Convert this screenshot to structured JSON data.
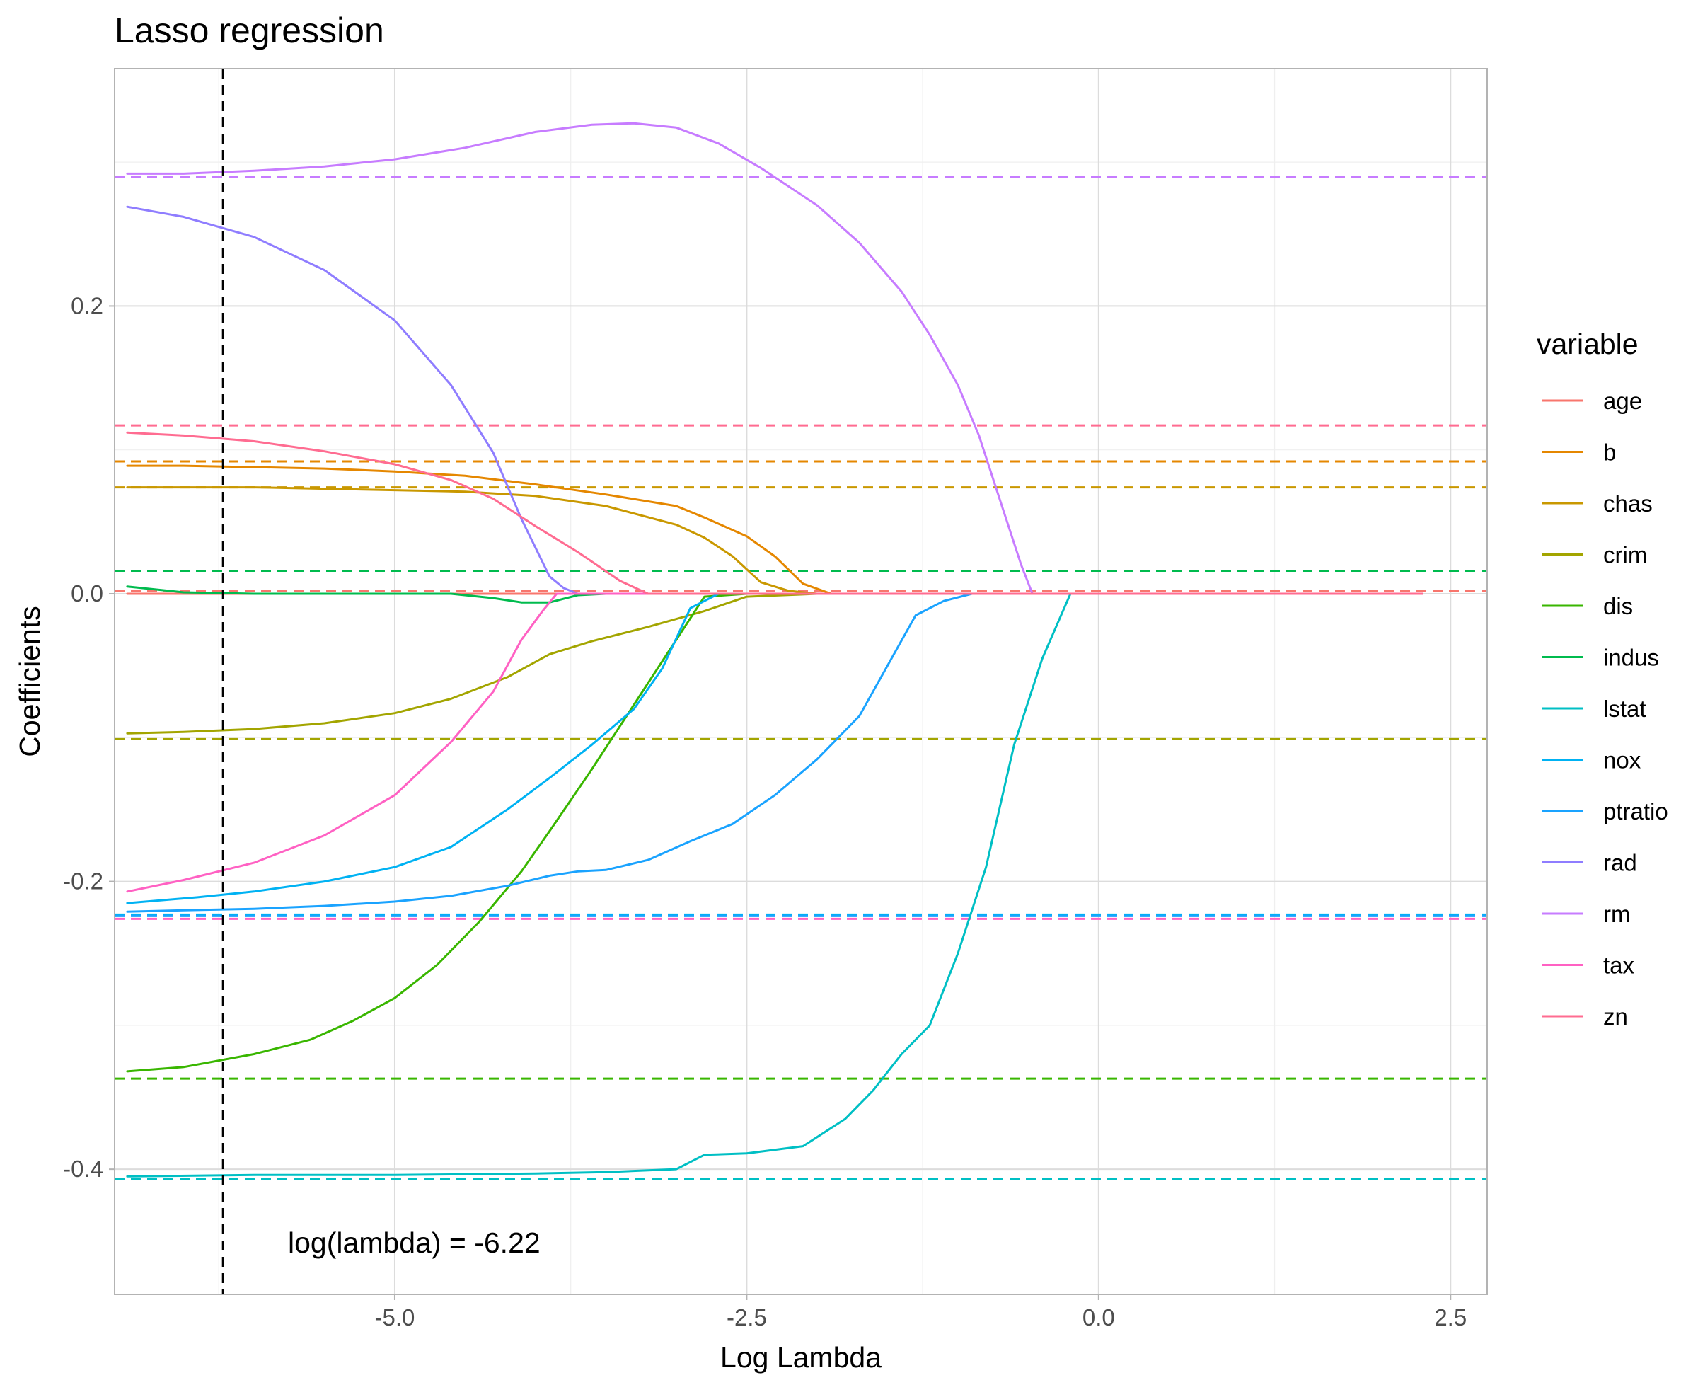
{
  "chart_data": {
    "type": "line",
    "title": "Lasso regression",
    "xlabel": "Log Lambda",
    "ylabel": "Coefficients",
    "xlim": [
      -6.99,
      2.76
    ],
    "ylim": [
      -0.487,
      0.365
    ],
    "x_ticks": [
      -5.0,
      -2.5,
      0.0,
      2.5
    ],
    "x_tick_labels": [
      "-5.0",
      "-2.5",
      "0.0",
      "2.5"
    ],
    "y_ticks": [
      -0.4,
      -0.2,
      0.0,
      0.2
    ],
    "y_tick_labels": [
      "-0.4",
      "-0.2",
      "0.0",
      "0.2"
    ],
    "grid": true,
    "legend": {
      "title": "variable",
      "position": "right"
    },
    "annotation": {
      "text": "log(lambda) = -6.22",
      "x": -6.22,
      "y": -0.451
    },
    "vline": {
      "x": -6.22,
      "style": "dashed",
      "color": "#000000"
    },
    "series": [
      {
        "name": "age",
        "color": "#F8766D",
        "ref": 0.002,
        "x": [
          -6.9,
          -2.0,
          2.3
        ],
        "y": [
          0.0,
          0.0,
          0.0
        ]
      },
      {
        "name": "b",
        "color": "#E58700",
        "ref": 0.092,
        "x": [
          -6.9,
          -6.5,
          -6.0,
          -5.5,
          -5.0,
          -4.5,
          -4.0,
          -3.5,
          -3.0,
          -2.8,
          -2.5,
          -2.3,
          -2.1,
          -1.9,
          -1.5,
          2.3
        ],
        "y": [
          0.089,
          0.089,
          0.088,
          0.087,
          0.085,
          0.082,
          0.076,
          0.069,
          0.061,
          0.053,
          0.04,
          0.026,
          0.007,
          0.0,
          0.0,
          0.0
        ]
      },
      {
        "name": "chas",
        "color": "#C99800",
        "ref": 0.074,
        "x": [
          -6.9,
          -6.5,
          -6.0,
          -5.5,
          -5.0,
          -4.5,
          -4.0,
          -3.5,
          -3.0,
          -2.8,
          -2.6,
          -2.4,
          -2.2,
          -2.0,
          2.3
        ],
        "y": [
          0.074,
          0.074,
          0.074,
          0.073,
          0.072,
          0.071,
          0.068,
          0.061,
          0.048,
          0.039,
          0.026,
          0.008,
          0.002,
          0.0,
          0.0
        ]
      },
      {
        "name": "crim",
        "color": "#A3A500",
        "ref": -0.101,
        "x": [
          -6.9,
          -6.5,
          -6.0,
          -5.5,
          -5.0,
          -4.6,
          -4.2,
          -3.9,
          -3.6,
          -3.2,
          -2.8,
          -2.5,
          -2.0,
          2.3
        ],
        "y": [
          -0.097,
          -0.096,
          -0.094,
          -0.09,
          -0.083,
          -0.073,
          -0.058,
          -0.042,
          -0.033,
          -0.023,
          -0.012,
          -0.002,
          0.0,
          0.0
        ]
      },
      {
        "name": "dis",
        "color": "#39B600",
        "ref": -0.337,
        "x": [
          -6.9,
          -6.5,
          -6.0,
          -5.6,
          -5.3,
          -5.0,
          -4.7,
          -4.4,
          -4.1,
          -3.9,
          -3.6,
          -3.3,
          -3.0,
          -2.8,
          -2.5,
          2.3
        ],
        "y": [
          -0.332,
          -0.329,
          -0.32,
          -0.31,
          -0.297,
          -0.281,
          -0.258,
          -0.228,
          -0.193,
          -0.165,
          -0.122,
          -0.077,
          -0.032,
          -0.002,
          0.0,
          0.0
        ]
      },
      {
        "name": "indus",
        "color": "#00BB4E",
        "ref": 0.016,
        "x": [
          -6.9,
          -6.5,
          -6.0,
          -5.5,
          -5.0,
          -4.6,
          -4.3,
          -4.1,
          -3.9,
          -3.7,
          -3.5,
          2.3
        ],
        "y": [
          0.005,
          0.001,
          0.0,
          0.0,
          0.0,
          0.0,
          -0.003,
          -0.006,
          -0.006,
          -0.001,
          0.0,
          0.0
        ]
      },
      {
        "name": "lstat",
        "color": "#00BFC4",
        "ref": -0.407,
        "x": [
          -6.9,
          -6.0,
          -5.0,
          -4.0,
          -3.5,
          -3.0,
          -2.8,
          -2.5,
          -2.1,
          -1.8,
          -1.6,
          -1.4,
          -1.2,
          -1.0,
          -0.8,
          -0.6,
          -0.4,
          -0.2,
          2.3
        ],
        "y": [
          -0.405,
          -0.404,
          -0.404,
          -0.403,
          -0.402,
          -0.4,
          -0.39,
          -0.389,
          -0.384,
          -0.365,
          -0.345,
          -0.32,
          -0.3,
          -0.25,
          -0.19,
          -0.105,
          -0.045,
          0.0,
          0.0
        ]
      },
      {
        "name": "nox",
        "color": "#00B2F3",
        "ref": -0.223,
        "x": [
          -6.9,
          -6.4,
          -6.0,
          -5.5,
          -5.0,
          -4.6,
          -4.2,
          -3.9,
          -3.6,
          -3.3,
          -3.1,
          -2.9,
          -2.7,
          2.3
        ],
        "y": [
          -0.215,
          -0.211,
          -0.207,
          -0.2,
          -0.19,
          -0.176,
          -0.15,
          -0.128,
          -0.105,
          -0.08,
          -0.052,
          -0.01,
          0.0,
          0.0
        ]
      },
      {
        "name": "ptratio",
        "color": "#1AA3FF",
        "ref": -0.224,
        "x": [
          -6.9,
          -6.5,
          -6.0,
          -5.5,
          -5.0,
          -4.6,
          -4.2,
          -3.9,
          -3.7,
          -3.5,
          -3.2,
          -2.9,
          -2.6,
          -2.3,
          -2.0,
          -1.7,
          -1.5,
          -1.3,
          -1.1,
          -0.9,
          2.3
        ],
        "y": [
          -0.221,
          -0.22,
          -0.219,
          -0.217,
          -0.214,
          -0.21,
          -0.203,
          -0.196,
          -0.193,
          -0.192,
          -0.185,
          -0.172,
          -0.16,
          -0.14,
          -0.115,
          -0.085,
          -0.05,
          -0.015,
          -0.005,
          0.0,
          0.0
        ]
      },
      {
        "name": "rad",
        "color": "#8F7DFF",
        "ref": 0.29,
        "x": [
          -6.9,
          -6.5,
          -6.0,
          -5.5,
          -5.0,
          -4.6,
          -4.3,
          -4.1,
          -3.9,
          -3.8,
          -3.7,
          2.3
        ],
        "y": [
          0.269,
          0.262,
          0.248,
          0.225,
          0.19,
          0.145,
          0.098,
          0.052,
          0.012,
          0.004,
          0.0,
          0.0
        ]
      },
      {
        "name": "rm",
        "color": "#C77CFF",
        "ref": 0.29,
        "x": [
          -6.9,
          -6.5,
          -6.0,
          -5.5,
          -5.0,
          -4.5,
          -4.0,
          -3.6,
          -3.3,
          -3.0,
          -2.7,
          -2.4,
          -2.0,
          -1.7,
          -1.4,
          -1.2,
          -1.0,
          -0.85,
          -0.7,
          -0.55,
          -0.47,
          2.3
        ],
        "y": [
          0.292,
          0.292,
          0.294,
          0.297,
          0.302,
          0.31,
          0.321,
          0.326,
          0.327,
          0.324,
          0.313,
          0.296,
          0.27,
          0.244,
          0.21,
          0.18,
          0.145,
          0.11,
          0.065,
          0.02,
          0.0,
          0.0
        ]
      },
      {
        "name": "tax",
        "color": "#FF61C3",
        "ref": -0.226,
        "x": [
          -6.9,
          -6.5,
          -6.0,
          -5.5,
          -5.0,
          -4.6,
          -4.3,
          -4.1,
          -3.95,
          -3.85,
          2.3
        ],
        "y": [
          -0.207,
          -0.199,
          -0.187,
          -0.168,
          -0.14,
          -0.103,
          -0.068,
          -0.032,
          -0.012,
          0.0,
          0.0
        ]
      },
      {
        "name": "zn",
        "color": "#FF6C91",
        "ref": 0.117,
        "x": [
          -6.9,
          -6.5,
          -6.0,
          -5.5,
          -5.0,
          -4.6,
          -4.3,
          -4.0,
          -3.7,
          -3.4,
          -3.2,
          2.3
        ],
        "y": [
          0.112,
          0.11,
          0.106,
          0.099,
          0.09,
          0.079,
          0.066,
          0.047,
          0.029,
          0.009,
          0.0,
          0.0
        ]
      }
    ]
  }
}
